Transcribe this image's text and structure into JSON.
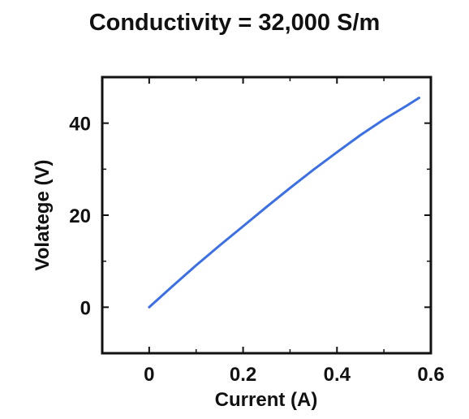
{
  "chart_data": {
    "type": "line",
    "title": "Conductivity = 32,000 S/m",
    "xlabel": "Current (A)",
    "ylabel": "Volatege (V)",
    "xlim": [
      -0.1,
      0.6
    ],
    "ylim": [
      -10,
      50
    ],
    "xticks": [
      0,
      0.2,
      0.4,
      0.6
    ],
    "xtick_labels": [
      "0",
      "0.2",
      "0.4",
      "0.6"
    ],
    "yticks": [
      0,
      20,
      40
    ],
    "ytick_labels": [
      "0",
      "20",
      "40"
    ],
    "grid": false,
    "legend": false,
    "series": [
      {
        "color": "#3b6fe8",
        "x": [
          0,
          0.05,
          0.1,
          0.15,
          0.2,
          0.25,
          0.3,
          0.35,
          0.4,
          0.45,
          0.5,
          0.55,
          0.575
        ],
        "y": [
          0,
          4.6,
          9.1,
          13.4,
          17.6,
          21.8,
          25.9,
          29.9,
          33.7,
          37.4,
          40.8,
          43.9,
          45.5
        ]
      }
    ]
  }
}
